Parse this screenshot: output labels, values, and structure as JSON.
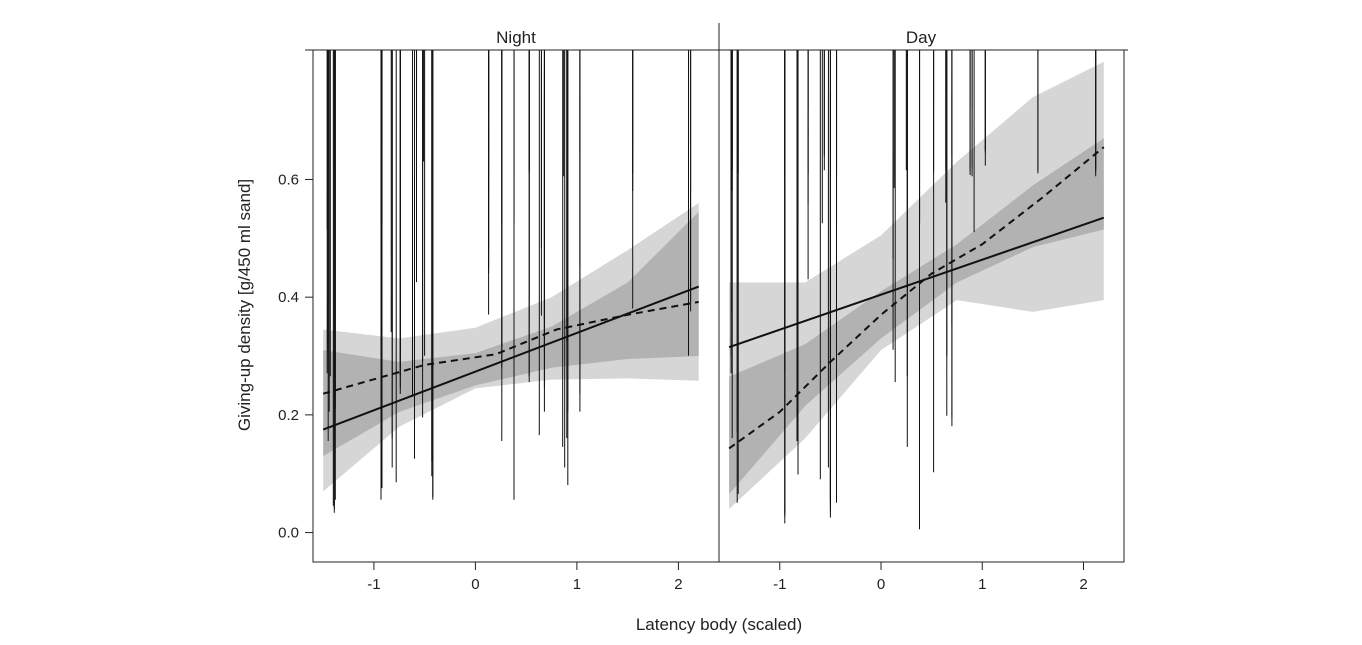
{
  "chart_data": {
    "type": "scatter",
    "xlabel": "Latency body (scaled)",
    "ylabel": "Giving-up density [g/450 ml sand]",
    "xlim": [
      -1.6,
      2.4
    ],
    "ylim": [
      -0.05,
      0.82
    ],
    "x_ticks": [
      -1,
      0,
      1,
      2
    ],
    "y_ticks": [
      0.0,
      0.2,
      0.4,
      0.6
    ],
    "x_tick_labels": [
      "-1",
      "0",
      "1",
      "2"
    ],
    "y_tick_labels": [
      "0.0",
      "0.2",
      "0.4",
      "0.6"
    ],
    "grid": false,
    "legend": "none",
    "colors": {
      "outer_band": "#d6d6d6",
      "inner_band": "#a6a6a6",
      "line": "#111111",
      "point": "#111111"
    },
    "panels": [
      {
        "title": "Night",
        "filled_points": [
          [
            -1.45,
            0.61
          ],
          [
            -1.43,
            0.26
          ],
          [
            -1.44,
            0.2
          ],
          [
            -1.45,
            0.15
          ],
          [
            -1.38,
            0.05
          ],
          [
            -1.4,
            0.04
          ],
          [
            -0.93,
            0.52
          ],
          [
            -0.92,
            0.345
          ],
          [
            -0.92,
            0.07
          ],
          [
            -0.93,
            0.05
          ],
          [
            -0.83,
            0.335
          ],
          [
            -0.82,
            0.105
          ],
          [
            -0.74,
            0.24
          ],
          [
            -0.74,
            0.23
          ],
          [
            -0.62,
            0.225
          ],
          [
            -0.6,
            0.12
          ],
          [
            -0.52,
            0.285
          ],
          [
            -0.52,
            0.19
          ],
          [
            -0.42,
            0.055
          ],
          [
            -0.42,
            0.05
          ],
          [
            0.13,
            0.56
          ],
          [
            0.13,
            0.435
          ],
          [
            0.26,
            0.31
          ],
          [
            0.26,
            0.275
          ],
          [
            0.38,
            0.125
          ],
          [
            0.38,
            0.05
          ],
          [
            0.53,
            0.605
          ],
          [
            0.53,
            0.26
          ],
          [
            0.63,
            0.16
          ],
          [
            0.68,
            0.355
          ],
          [
            0.68,
            0.2
          ],
          [
            0.87,
            0.6
          ],
          [
            0.88,
            0.105
          ],
          [
            0.91,
            0.2
          ],
          [
            0.91,
            0.075
          ],
          [
            1.03,
            0.64
          ],
          [
            1.03,
            0.23
          ],
          [
            1.55,
            0.605
          ],
          [
            1.55,
            0.575
          ],
          [
            2.12,
            0.385
          ],
          [
            2.12,
            0.37
          ]
        ],
        "open_points": [
          [
            -1.46,
            0.51
          ],
          [
            -1.45,
            0.315
          ],
          [
            -1.45,
            0.3
          ],
          [
            -1.46,
            0.265
          ],
          [
            -1.38,
            0.205
          ],
          [
            -1.39,
            0.035
          ],
          [
            -1.39,
            0.028
          ],
          [
            -0.93,
            0.42
          ],
          [
            -0.93,
            0.28
          ],
          [
            -0.93,
            0.1
          ],
          [
            -0.58,
            0.525
          ],
          [
            -0.58,
            0.42
          ],
          [
            -0.82,
            0.155
          ],
          [
            -0.78,
            0.08
          ],
          [
            -0.74,
            0.27
          ],
          [
            -0.74,
            0.26
          ],
          [
            -0.51,
            0.625
          ],
          [
            -0.5,
            0.295
          ],
          [
            -0.43,
            0.115
          ],
          [
            -0.43,
            0.09
          ],
          [
            0.13,
            0.475
          ],
          [
            0.13,
            0.445
          ],
          [
            0.13,
            0.365
          ],
          [
            0.26,
            0.52
          ],
          [
            0.26,
            0.15
          ],
          [
            0.38,
            0.065
          ],
          [
            0.53,
            0.61
          ],
          [
            0.53,
            0.25
          ],
          [
            0.65,
            0.478
          ],
          [
            0.65,
            0.363
          ],
          [
            0.68,
            0.303
          ],
          [
            0.68,
            0.24
          ],
          [
            0.86,
            0.14
          ],
          [
            0.9,
            0.155
          ],
          [
            0.9,
            0.32
          ],
          [
            1.03,
            0.448
          ],
          [
            1.03,
            0.2
          ],
          [
            2.1,
            0.63
          ],
          [
            2.1,
            0.295
          ],
          [
            1.55,
            0.375
          ]
        ],
        "solid_line": [
          [
            -1.5,
            0.175
          ],
          [
            2.2,
            0.418
          ]
        ],
        "dashed_line": [
          [
            -1.5,
            0.236
          ],
          [
            -0.5,
            0.285
          ],
          [
            0.2,
            0.303
          ],
          [
            0.8,
            0.345
          ],
          [
            1.5,
            0.37
          ],
          [
            2.2,
            0.392
          ]
        ],
        "outer_band": {
          "x": [
            -1.5,
            -0.75,
            0.0,
            0.75,
            1.5,
            2.2
          ],
          "lower": [
            0.07,
            0.18,
            0.245,
            0.26,
            0.262,
            0.258
          ],
          "upper": [
            0.345,
            0.33,
            0.348,
            0.4,
            0.48,
            0.56
          ]
        },
        "inner_band": {
          "x": [
            -1.5,
            -0.75,
            0.0,
            0.75,
            1.5,
            2.2
          ],
          "lower": [
            0.13,
            0.205,
            0.25,
            0.28,
            0.295,
            0.3
          ],
          "upper": [
            0.31,
            0.29,
            0.305,
            0.35,
            0.425,
            0.545
          ]
        }
      },
      {
        "title": "Day",
        "filled_points": [
          [
            -1.47,
            0.61
          ],
          [
            -1.41,
            0.605
          ],
          [
            -1.47,
            0.575
          ],
          [
            -1.48,
            0.37
          ],
          [
            -1.42,
            0.045
          ],
          [
            -0.95,
            0.625
          ],
          [
            -0.95,
            0.595
          ],
          [
            -0.95,
            0.01
          ],
          [
            -0.83,
            0.16
          ],
          [
            -0.83,
            0.15
          ],
          [
            -0.72,
            0.605
          ],
          [
            -0.56,
            0.635
          ],
          [
            -0.56,
            0.61
          ],
          [
            -0.5,
            0.04
          ],
          [
            -0.5,
            0.03
          ],
          [
            -0.5,
            0.02
          ],
          [
            -0.44,
            0.105
          ],
          [
            -0.44,
            0.045
          ],
          [
            0.13,
            0.58
          ],
          [
            0.14,
            0.25
          ],
          [
            0.25,
            0.61
          ],
          [
            0.26,
            0.41
          ],
          [
            0.38,
            0.055
          ],
          [
            0.38,
            0.0
          ],
          [
            0.52,
            0.608
          ],
          [
            0.52,
            0.097
          ],
          [
            0.65,
            0.295
          ],
          [
            0.65,
            0.193
          ],
          [
            0.7,
            0.635
          ],
          [
            0.7,
            0.175
          ],
          [
            0.88,
            0.602
          ],
          [
            0.9,
            0.615
          ],
          [
            0.9,
            0.6
          ],
          [
            1.03,
            0.645
          ],
          [
            1.03,
            0.618
          ],
          [
            1.55,
            0.605
          ],
          [
            2.12,
            0.608
          ],
          [
            2.12,
            0.6
          ]
        ],
        "open_points": [
          [
            -1.48,
            0.365
          ],
          [
            -1.48,
            0.295
          ],
          [
            -1.48,
            0.265
          ],
          [
            -1.47,
            0.155
          ],
          [
            -1.42,
            0.165
          ],
          [
            -1.41,
            0.06
          ],
          [
            -0.95,
            0.32
          ],
          [
            -0.95,
            0.27
          ],
          [
            -0.95,
            0.028
          ],
          [
            -0.95,
            0.022
          ],
          [
            -0.82,
            0.093
          ],
          [
            -0.72,
            0.552
          ],
          [
            -0.72,
            0.425
          ],
          [
            -0.58,
            0.52
          ],
          [
            -0.6,
            0.085
          ],
          [
            -0.52,
            0.105
          ],
          [
            -0.5,
            0.05
          ],
          [
            -0.44,
            0.555
          ],
          [
            -0.44,
            0.13
          ],
          [
            0.12,
            0.46
          ],
          [
            0.12,
            0.305
          ],
          [
            0.26,
            0.26
          ],
          [
            0.26,
            0.14
          ],
          [
            0.38,
            0.045
          ],
          [
            0.38,
            0.035
          ],
          [
            0.64,
            0.61
          ],
          [
            0.64,
            0.555
          ],
          [
            0.7,
            0.19
          ],
          [
            0.7,
            0.345
          ],
          [
            0.88,
            0.61
          ],
          [
            0.92,
            0.505
          ],
          [
            1.03,
            0.64
          ],
          [
            1.55,
            0.61
          ],
          [
            2.12,
            0.612
          ]
        ],
        "solid_line": [
          [
            -1.5,
            0.315
          ],
          [
            2.2,
            0.535
          ]
        ],
        "dashed_line": [
          [
            -1.5,
            0.143
          ],
          [
            -1.0,
            0.205
          ],
          [
            -0.5,
            0.29
          ],
          [
            0.0,
            0.37
          ],
          [
            0.5,
            0.44
          ],
          [
            1.0,
            0.49
          ],
          [
            1.6,
            0.57
          ],
          [
            2.2,
            0.655
          ]
        ],
        "outer_band": {
          "x": [
            -1.5,
            -0.75,
            0.0,
            0.75,
            1.5,
            2.2
          ],
          "lower": [
            0.04,
            0.16,
            0.31,
            0.395,
            0.375,
            0.395
          ],
          "upper": [
            0.425,
            0.425,
            0.505,
            0.63,
            0.74,
            0.8
          ]
        },
        "inner_band": {
          "x": [
            -1.5,
            -0.75,
            0.0,
            0.75,
            1.5,
            2.2
          ],
          "lower": [
            0.065,
            0.215,
            0.33,
            0.425,
            0.485,
            0.515
          ],
          "upper": [
            0.265,
            0.32,
            0.41,
            0.49,
            0.59,
            0.67
          ]
        }
      }
    ]
  }
}
